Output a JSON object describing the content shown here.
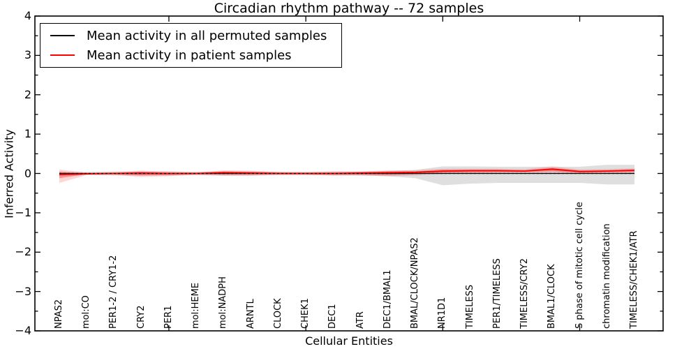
{
  "legend": {
    "entries": [
      {
        "label": "Mean activity in all permuted samples",
        "color": "#000000"
      },
      {
        "label": "Mean activity in patient samples",
        "color": "#ff0000"
      }
    ]
  },
  "chart_data": {
    "type": "line",
    "title": "Circadian rhythm pathway -- 72 samples",
    "xlabel": "Cellular Entities",
    "ylabel": "Inferred Activity",
    "ylim": [
      -4,
      4
    ],
    "grid": false,
    "legend_position": "upper-left",
    "ytick_values": [
      4,
      3,
      2,
      1,
      0,
      -1,
      -2,
      -3,
      -4
    ],
    "ytick_labels": [
      "4",
      "3",
      "2",
      "1",
      "0",
      "−1",
      "−2",
      "−3",
      "−4"
    ],
    "minor_ytick_step": 0.5,
    "xtick_major_indices": [
      4,
      9,
      14,
      19
    ],
    "categories": [
      "NPAS2",
      "mol:CO",
      "PER1-2 / CRY1-2",
      "CRY2",
      "PER1",
      "mol:HEME",
      "mol:NADPH",
      "ARNTL",
      "CLOCK",
      "CHEK1",
      "DEC1",
      "ATR",
      "DEC1/BMAL1",
      "BMAL/CLOCK/NPAS2",
      "NR1D1",
      "TIMELESS",
      "PER1/TIMELESS",
      "TIMELESS/CRY2",
      "BMAL1/CLOCK",
      "S phase of mitotic cell cycle",
      "chromatin modification",
      "TIMELESS/CHEK1/ATR"
    ],
    "series": [
      {
        "key": "permuted-mean-line",
        "label": "Mean activity in all permuted samples",
        "color": "#000000",
        "values": [
          0,
          0,
          0,
          0,
          0,
          0,
          0,
          0,
          0,
          0,
          0,
          0,
          0,
          0,
          0,
          0,
          0,
          0,
          0,
          0,
          0,
          0
        ]
      },
      {
        "key": "patient-mean-line",
        "label": "Mean activity in patient samples",
        "color": "#ff0000",
        "values": [
          -0.03,
          -0.01,
          0,
          0.01,
          0,
          0,
          0.02,
          0.01,
          0,
          0,
          0,
          0.01,
          0.02,
          0.03,
          0.06,
          0.07,
          0.07,
          0.06,
          0.11,
          0.05,
          0.06,
          0.08
        ]
      }
    ],
    "bands": [
      {
        "key": "permuted-range-band",
        "color": "rgba(128,128,128,0.25)",
        "upper": [
          0.04,
          0.04,
          0.05,
          0.05,
          0.05,
          0.04,
          0.05,
          0.05,
          0.04,
          0.04,
          0.05,
          0.05,
          0.06,
          0.09,
          0.18,
          0.18,
          0.17,
          0.17,
          0.17,
          0.17,
          0.22,
          0.22
        ],
        "lower": [
          -0.04,
          -0.04,
          -0.05,
          -0.05,
          -0.05,
          -0.04,
          -0.05,
          -0.05,
          -0.04,
          -0.04,
          -0.05,
          -0.05,
          -0.07,
          -0.12,
          -0.3,
          -0.26,
          -0.24,
          -0.24,
          -0.24,
          -0.24,
          -0.28,
          -0.28
        ]
      },
      {
        "key": "patient-range-outer-band",
        "color": "rgba(255,0,0,0.16)",
        "upper": [
          0.1,
          0.02,
          0.03,
          0.07,
          0.05,
          0.03,
          0.08,
          0.07,
          0.04,
          0.03,
          0.05,
          0.05,
          0.08,
          0.08,
          0.12,
          0.12,
          0.12,
          0.11,
          0.18,
          0.1,
          0.11,
          0.13
        ],
        "lower": [
          -0.24,
          -0.04,
          -0.04,
          -0.09,
          -0.07,
          -0.04,
          -0.06,
          -0.06,
          -0.04,
          -0.04,
          -0.05,
          -0.05,
          -0.07,
          -0.05,
          -0.01,
          0,
          0.01,
          0.01,
          0.02,
          0,
          0.01,
          -0.01
        ]
      },
      {
        "key": "patient-range-inner-band",
        "color": "rgba(255,0,0,0.32)",
        "upper": [
          0.04,
          0,
          0.01,
          0.04,
          0.02,
          0.01,
          0.05,
          0.04,
          0.02,
          0.01,
          0.02,
          0.03,
          0.05,
          0.05,
          0.09,
          0.09,
          0.09,
          0.08,
          0.14,
          0.07,
          0.08,
          0.1
        ],
        "lower": [
          -0.12,
          -0.02,
          -0.02,
          -0.05,
          -0.04,
          -0.02,
          -0.03,
          -0.03,
          -0.02,
          -0.02,
          -0.03,
          -0.03,
          -0.04,
          -0.02,
          0.02,
          0.03,
          0.04,
          0.04,
          0.06,
          0.02,
          0.03,
          0.04
        ]
      }
    ],
    "zero_line": {
      "style": "dashed",
      "value": 0,
      "color": "#000000"
    }
  }
}
